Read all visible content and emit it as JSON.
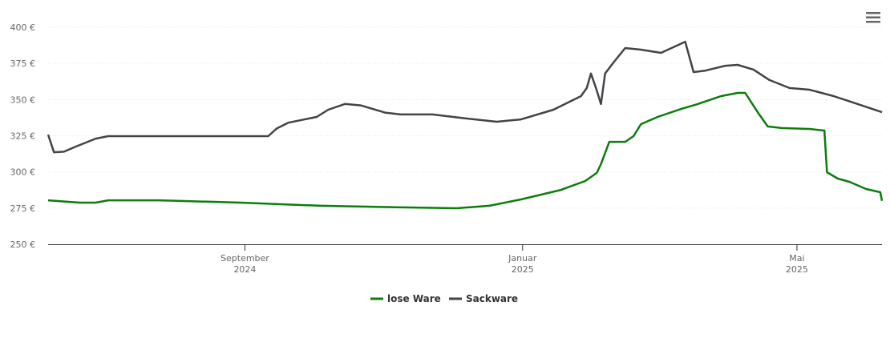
{
  "chart_data": {
    "type": "line",
    "xlim": [
      2024.431,
      2025.431
    ],
    "xticks": [
      {
        "value": 2024.667,
        "label": "September",
        "year": "2024"
      },
      {
        "value": 2025.0,
        "label": "Januar",
        "year": "2025"
      },
      {
        "value": 2025.329,
        "label": "Mai",
        "year": "2025"
      }
    ],
    "ylim": [
      250,
      400
    ],
    "yticks": [
      {
        "value": 250,
        "label": "250 €"
      },
      {
        "value": 275,
        "label": "275 €"
      },
      {
        "value": 300,
        "label": "300 €"
      },
      {
        "value": 325,
        "label": "325 €"
      },
      {
        "value": 350,
        "label": "350 €"
      },
      {
        "value": 375,
        "label": "375 €"
      },
      {
        "value": 400,
        "label": "400 €"
      }
    ],
    "grid": true,
    "legend": "bottom",
    "series": [
      {
        "name": "lose Ware",
        "color": "#0a7d0a",
        "x": [
          2024.431,
          2024.469,
          2024.488,
          2024.503,
          2024.565,
          2024.662,
          2024.758,
          2024.854,
          2024.921,
          2024.96,
          2024.998,
          2025.046,
          2025.075,
          2025.089,
          2025.094,
          2025.104,
          2025.123,
          2025.133,
          2025.142,
          2025.162,
          2025.19,
          2025.21,
          2025.238,
          2025.258,
          2025.267,
          2025.282,
          2025.294,
          2025.311,
          2025.344,
          2025.362,
          2025.365,
          2025.378,
          2025.392,
          2025.412,
          2025.429,
          2025.431
        ],
        "values": [
          280.4,
          278.8,
          278.8,
          280.4,
          280.4,
          278.8,
          276.6,
          275.5,
          274.9,
          276.6,
          281.0,
          287.6,
          293.7,
          299.3,
          305.4,
          320.8,
          320.8,
          324.7,
          333.0,
          338.0,
          343.5,
          346.9,
          352.4,
          354.6,
          354.6,
          341.3,
          331.4,
          330.3,
          329.7,
          328.6,
          299.8,
          295.4,
          293.2,
          288.2,
          286.0,
          280.0
        ]
      },
      {
        "name": "Sackware",
        "color": "#434348",
        "x": [
          2024.431,
          2024.438,
          2024.45,
          2024.464,
          2024.488,
          2024.503,
          2024.565,
          2024.695,
          2024.705,
          2024.719,
          2024.753,
          2024.767,
          2024.787,
          2024.806,
          2024.835,
          2024.854,
          2024.892,
          2024.931,
          2024.969,
          2024.998,
          2025.037,
          2025.07,
          2025.077,
          2025.082,
          2025.088,
          2025.094,
          2025.099,
          2025.109,
          2025.123,
          2025.142,
          2025.166,
          2025.195,
          2025.205,
          2025.219,
          2025.243,
          2025.258,
          2025.277,
          2025.296,
          2025.32,
          2025.344,
          2025.373,
          2025.402,
          2025.431
        ],
        "values": [
          325.8,
          313.6,
          314.0,
          317.5,
          323.0,
          324.7,
          324.7,
          324.7,
          330.0,
          334.0,
          338.0,
          343.0,
          347.0,
          346.0,
          341.0,
          339.7,
          339.7,
          337.0,
          334.7,
          336.3,
          343.0,
          352.4,
          358.0,
          368.0,
          358.0,
          346.9,
          368.0,
          375.6,
          385.6,
          384.5,
          382.3,
          390.0,
          369.0,
          370.0,
          373.4,
          374.0,
          370.7,
          363.5,
          358.0,
          356.8,
          352.4,
          346.9,
          341.3
        ]
      }
    ]
  }
}
